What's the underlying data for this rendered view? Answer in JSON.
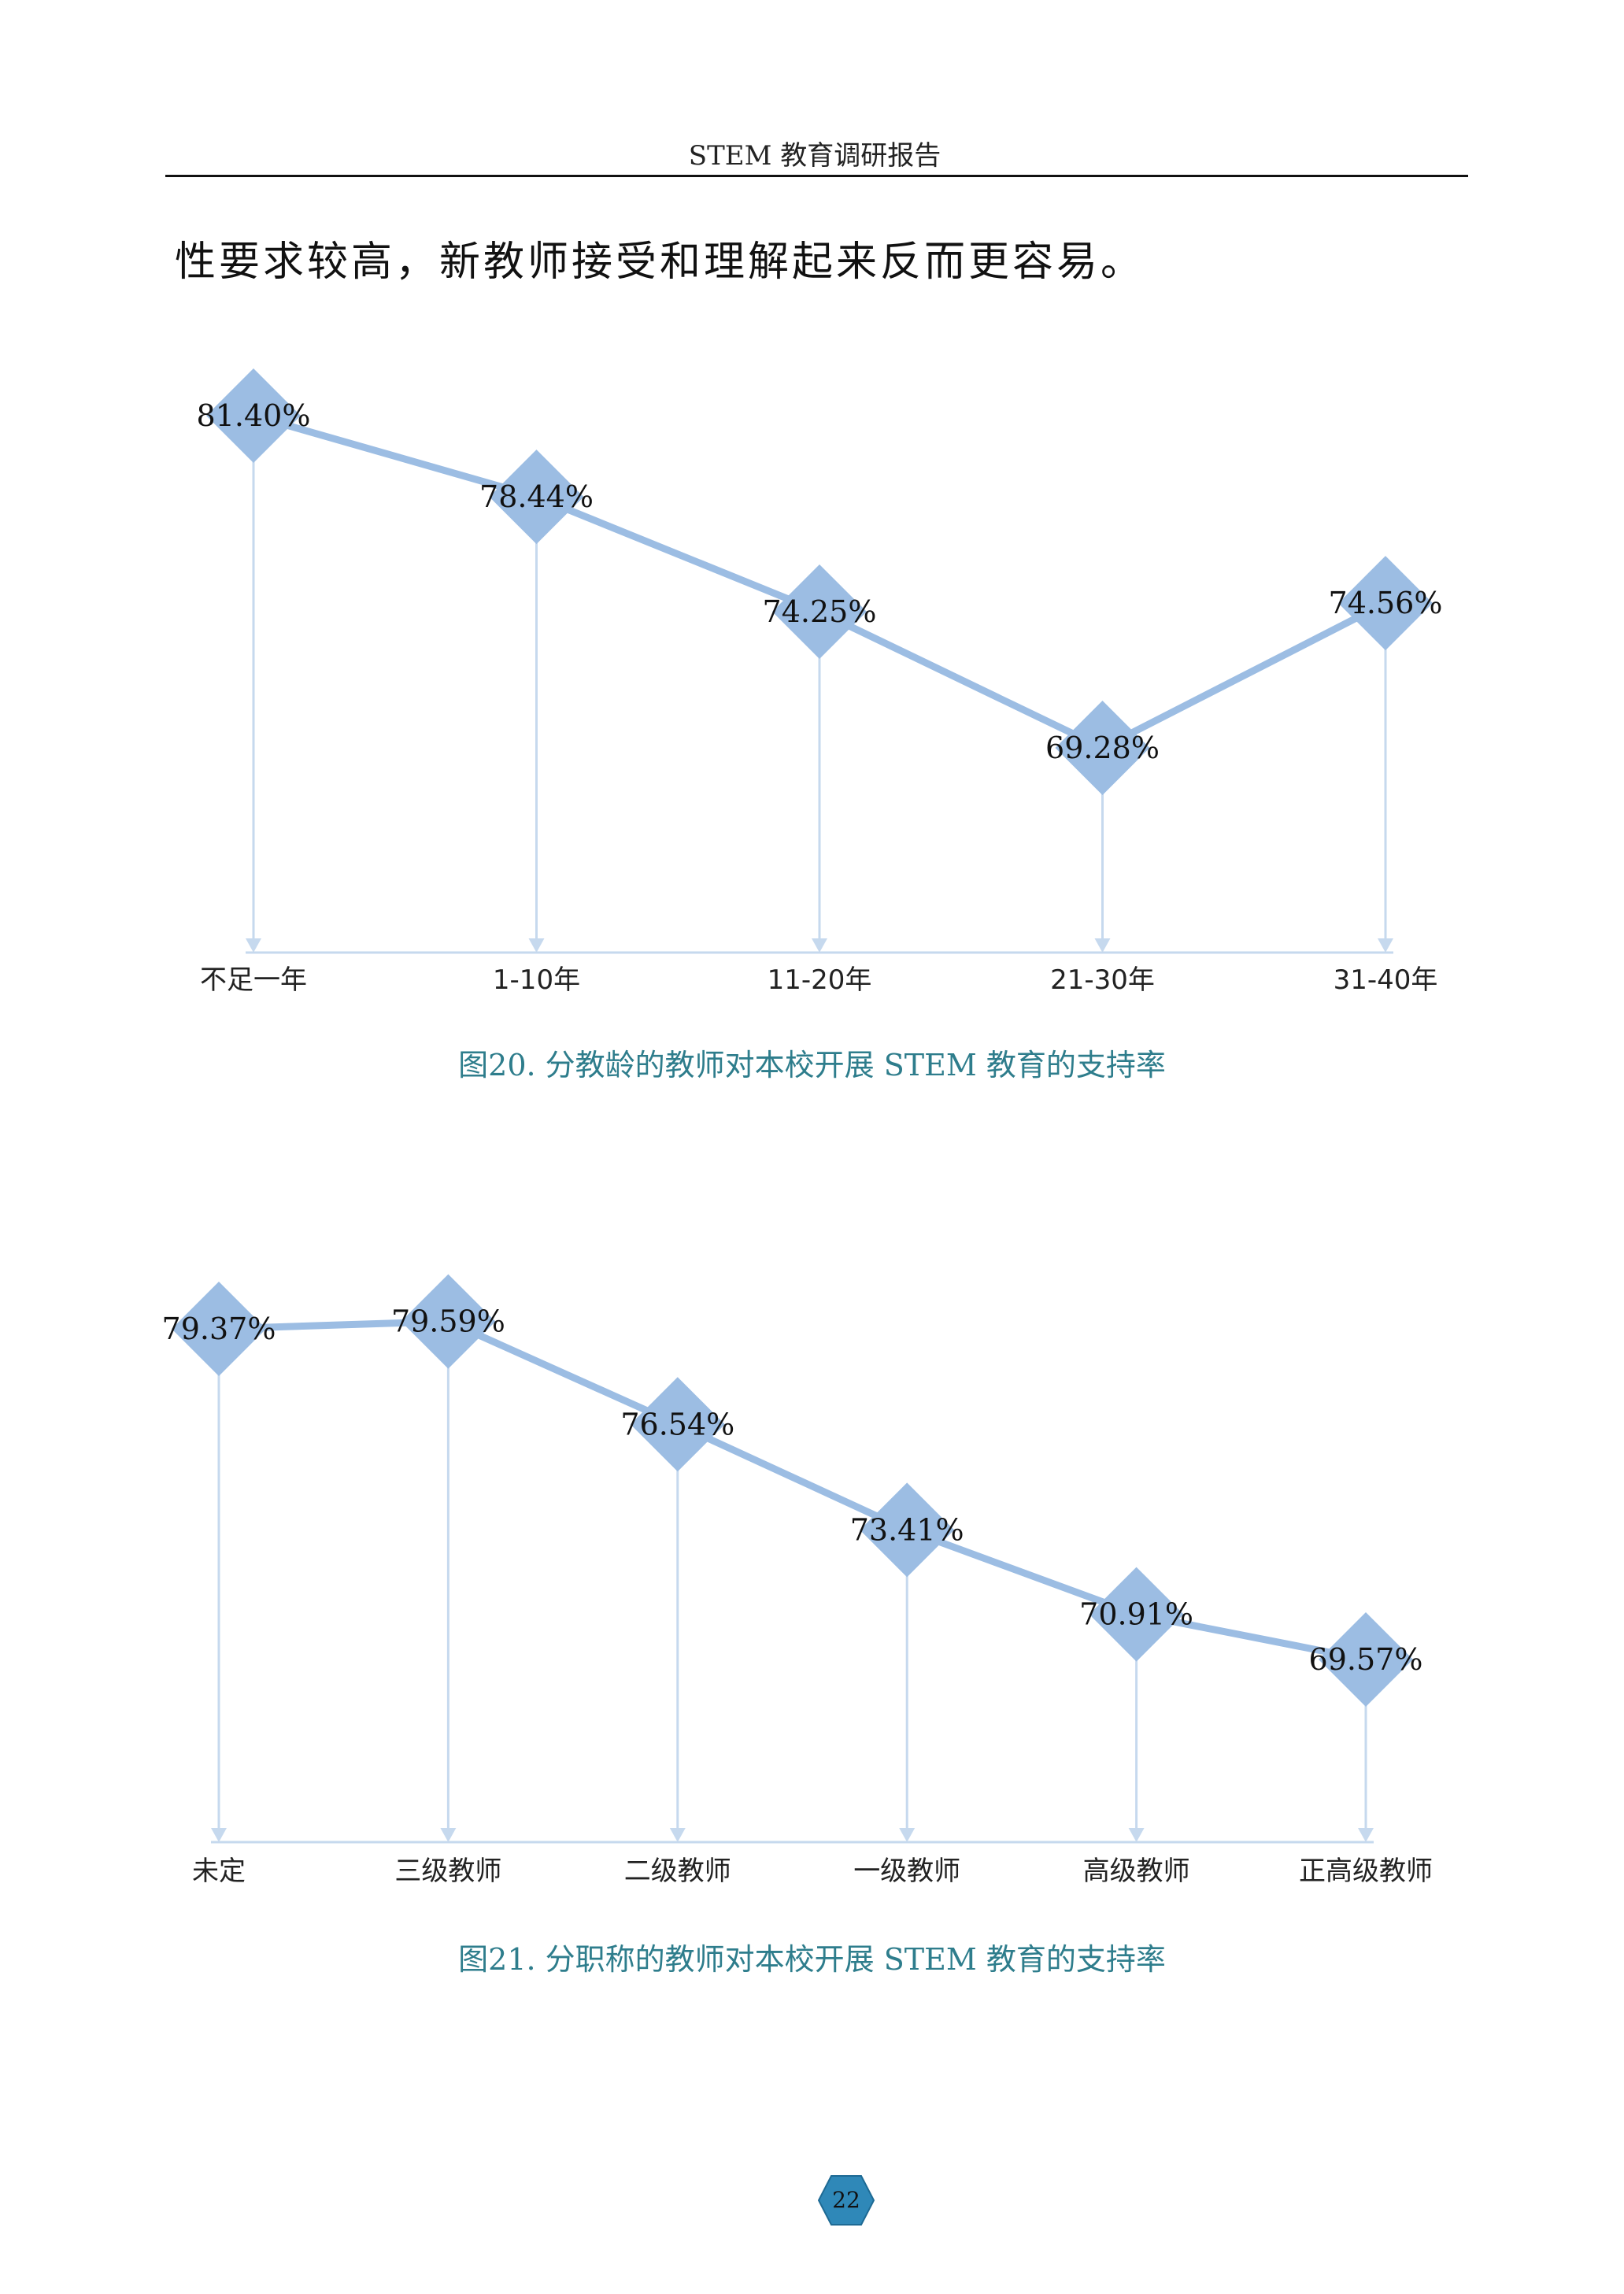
{
  "header": {
    "title": "STEM 教育调研报告"
  },
  "body_text": "性要求较高，新教师接受和理解起来反而更容易。",
  "colors": {
    "line": "#9cbde3",
    "marker": "#9cbde3",
    "stem": "#c6d9ee",
    "caption": "#2e7d8c",
    "page_badge": "#2f88b8"
  },
  "chart_data": [
    {
      "type": "line",
      "categories": [
        "不足一年",
        "1-10年",
        "11-20年",
        "21-30年",
        "31-40年"
      ],
      "values": [
        81.4,
        78.44,
        74.25,
        69.28,
        74.56
      ],
      "labels": [
        "81.40%",
        "78.44%",
        "74.25%",
        "69.28%",
        "74.56%"
      ],
      "caption": "图20. 分教龄的教师对本校开展 STEM 教育的支持率",
      "marker": "diamond"
    },
    {
      "type": "line",
      "categories": [
        "未定",
        "三级教师",
        "二级教师",
        "一级教师",
        "高级教师",
        "正高级教师"
      ],
      "values": [
        79.37,
        79.59,
        76.54,
        73.41,
        70.91,
        69.57
      ],
      "labels": [
        "79.37%",
        "79.59%",
        "76.54%",
        "73.41%",
        "70.91%",
        "69.57%"
      ],
      "caption": "图21. 分职称的教师对本校开展 STEM 教育的支持率",
      "marker": "diamond"
    }
  ],
  "page_number": "22"
}
